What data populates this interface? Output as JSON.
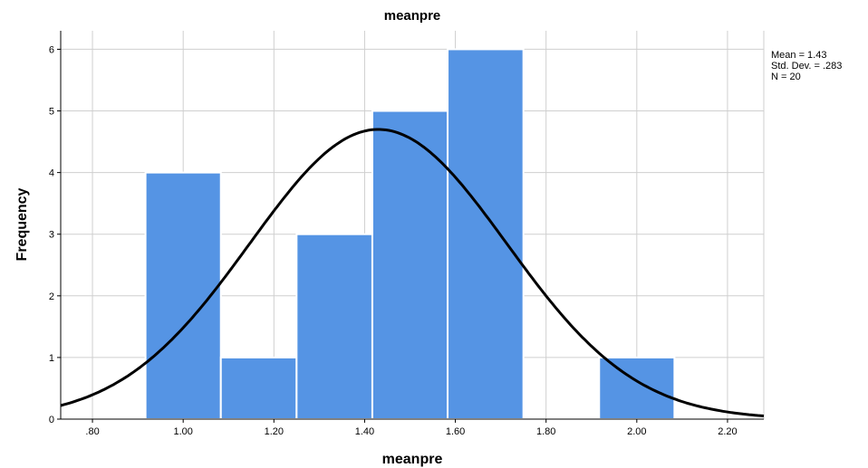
{
  "chart_data": {
    "type": "bar",
    "title": "meanpre",
    "xlabel": "meanpre",
    "ylabel": "Frequency",
    "xlim": [
      0.73,
      2.28
    ],
    "ylim": [
      0,
      6.3
    ],
    "x_ticks": [
      0.8,
      1.0,
      1.2,
      1.4,
      1.6,
      1.8,
      2.0,
      2.2
    ],
    "x_tick_labels": [
      ".80",
      "1.00",
      "1.20",
      "1.40",
      "1.60",
      "1.80",
      "2.00",
      "2.20"
    ],
    "y_ticks": [
      0,
      1,
      2,
      3,
      4,
      5,
      6
    ],
    "y_tick_labels": [
      "0",
      "1",
      "2",
      "3",
      "4",
      "5",
      "6"
    ],
    "grid": true,
    "bin_width": 0.1667,
    "bins": [
      {
        "x0": 0.917,
        "x1": 1.083,
        "count": 4
      },
      {
        "x0": 1.083,
        "x1": 1.25,
        "count": 1
      },
      {
        "x0": 1.25,
        "x1": 1.417,
        "count": 3
      },
      {
        "x0": 1.417,
        "x1": 1.583,
        "count": 5
      },
      {
        "x0": 1.583,
        "x1": 1.75,
        "count": 6
      },
      {
        "x0": 1.75,
        "x1": 1.917,
        "count": 0
      },
      {
        "x0": 1.917,
        "x1": 2.083,
        "count": 1
      }
    ],
    "normal_curve": {
      "mean": 1.43,
      "std": 0.283,
      "n": 20
    },
    "stats": {
      "mean_label": "Mean = 1.43",
      "std_label": "Std. Dev. = .283",
      "n_label": "N = 20"
    },
    "colors": {
      "bar": "#5594e4",
      "curve": "#000000",
      "grid": "#cfcfcf"
    }
  }
}
